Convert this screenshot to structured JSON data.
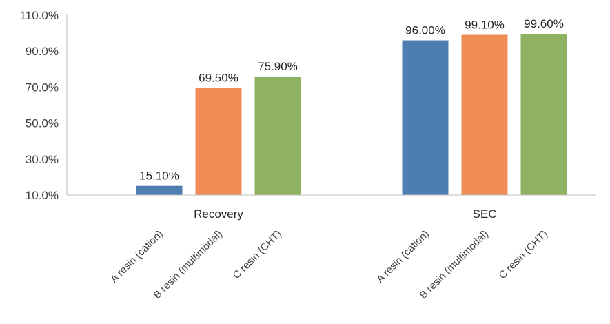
{
  "chart_data": {
    "type": "bar",
    "groups": [
      "Recovery",
      "SEC"
    ],
    "series": [
      {
        "name": "A resin (cation)",
        "color": "#4E7DB1",
        "values": [
          15.1,
          96.0
        ],
        "labels": [
          "15.10%",
          "96.00%"
        ]
      },
      {
        "name": "B resin (multimodal)",
        "color": "#F08C55",
        "values": [
          69.5,
          99.1
        ],
        "labels": [
          "69.50%",
          "99.10%"
        ]
      },
      {
        "name": "C resin (CHT)",
        "color": "#8FB162",
        "values": [
          75.9,
          99.6
        ],
        "labels": [
          "75.90%",
          "99.60%"
        ]
      }
    ],
    "ylim": [
      10,
      110
    ],
    "yticks": [
      10,
      30,
      50,
      70,
      90,
      110
    ],
    "ytick_labels": [
      "10.0%",
      "30.0%",
      "50.0%",
      "70.0%",
      "90.0%",
      "110.0%"
    ],
    "legend": "none",
    "grid": false
  }
}
